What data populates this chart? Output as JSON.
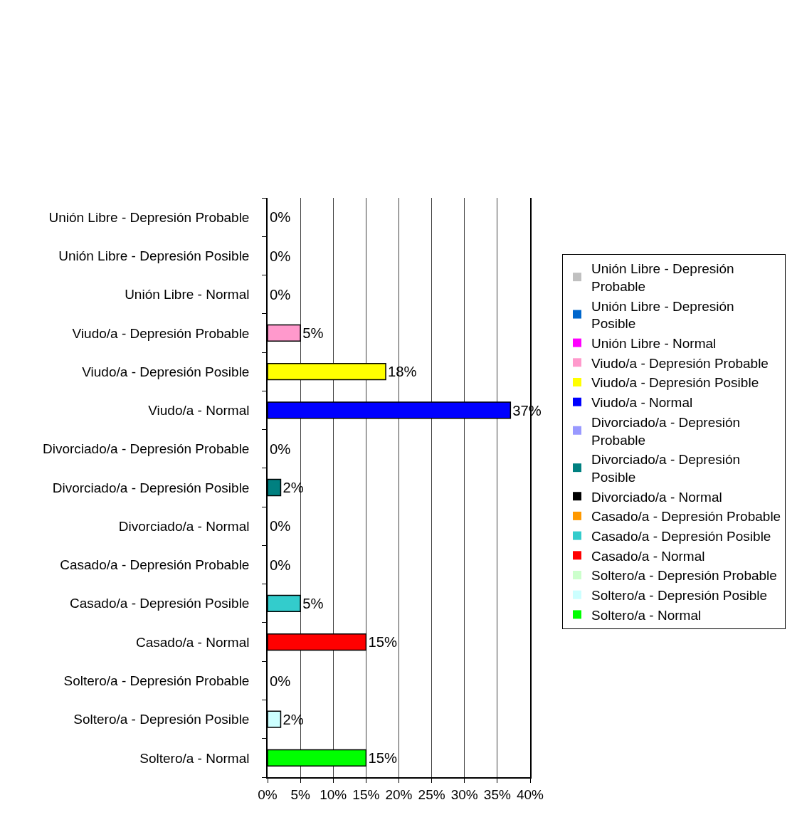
{
  "chart_data": {
    "type": "bar",
    "orientation": "horizontal",
    "stacked": true,
    "categories": [
      "Unión Libre - Depresión Probable",
      "Unión Libre - Depresión Posible",
      "Unión Libre - Normal",
      "Viudo/a - Depresión Probable",
      "Viudo/a - Depresión Posible",
      "Viudo/a - Normal",
      "Divorciado/a - Depresión Probable",
      "Divorciado/a - Depresión Posible",
      "Divorciado/a - Normal",
      "Casado/a - Depresión Probable",
      "Casado/a - Depresión Posible",
      "Casado/a - Normal",
      "Soltero/a - Depresión Probable",
      "Soltero/a - Depresión Posible",
      "Soltero/a - Normal"
    ],
    "series": [
      {
        "name": "Unión Libre - Depresión Probable",
        "color": "#c0c0c0",
        "values": [
          0,
          null,
          null,
          null,
          null,
          null,
          null,
          null,
          null,
          null,
          null,
          null,
          null,
          null,
          null
        ],
        "value_labels": [
          "0%",
          null,
          null,
          null,
          null,
          null,
          null,
          null,
          null,
          null,
          null,
          null,
          null,
          null,
          null
        ]
      },
      {
        "name": "Unión Libre - Depresión Posible",
        "color": "#0066cc",
        "values": [
          null,
          0,
          null,
          null,
          null,
          null,
          null,
          null,
          null,
          null,
          null,
          null,
          null,
          null,
          null
        ],
        "value_labels": [
          null,
          "0%",
          null,
          null,
          null,
          null,
          null,
          null,
          null,
          null,
          null,
          null,
          null,
          null,
          null
        ]
      },
      {
        "name": "Unión Libre - Normal",
        "color": "#ff00ff",
        "values": [
          null,
          null,
          0,
          null,
          null,
          null,
          null,
          null,
          null,
          null,
          null,
          null,
          null,
          null,
          null
        ],
        "value_labels": [
          null,
          null,
          "0%",
          null,
          null,
          null,
          null,
          null,
          null,
          null,
          null,
          null,
          null,
          null,
          null
        ]
      },
      {
        "name": "Viudo/a - Depresión Probable",
        "color": "#ff99cc",
        "values": [
          null,
          null,
          null,
          5,
          null,
          null,
          null,
          null,
          null,
          null,
          null,
          null,
          null,
          null,
          null
        ],
        "value_labels": [
          null,
          null,
          null,
          "5%",
          null,
          null,
          null,
          null,
          null,
          null,
          null,
          null,
          null,
          null,
          null
        ]
      },
      {
        "name": "Viudo/a - Depresión Posible",
        "color": "#ffff00",
        "values": [
          null,
          null,
          null,
          null,
          18,
          null,
          null,
          null,
          null,
          null,
          null,
          null,
          null,
          null,
          null
        ],
        "value_labels": [
          null,
          null,
          null,
          null,
          "18%",
          null,
          null,
          null,
          null,
          null,
          null,
          null,
          null,
          null,
          null
        ]
      },
      {
        "name": "Viudo/a - Normal",
        "color": "#0000ff",
        "values": [
          null,
          null,
          null,
          null,
          null,
          37,
          null,
          null,
          null,
          null,
          null,
          null,
          null,
          null,
          null
        ],
        "value_labels": [
          null,
          null,
          null,
          null,
          null,
          "37%",
          null,
          null,
          null,
          null,
          null,
          null,
          null,
          null,
          null
        ]
      },
      {
        "name": "Divorciado/a - Depresión Probable",
        "color": "#9999ff",
        "values": [
          null,
          null,
          null,
          null,
          null,
          null,
          0,
          null,
          null,
          null,
          null,
          null,
          null,
          null,
          null
        ],
        "value_labels": [
          null,
          null,
          null,
          null,
          null,
          null,
          "0%",
          null,
          null,
          null,
          null,
          null,
          null,
          null,
          null
        ]
      },
      {
        "name": "Divorciado/a - Depresión Posible",
        "color": "#008080",
        "values": [
          null,
          null,
          null,
          null,
          null,
          null,
          null,
          2,
          null,
          null,
          null,
          null,
          null,
          null,
          null
        ],
        "value_labels": [
          null,
          null,
          null,
          null,
          null,
          null,
          null,
          "2%",
          null,
          null,
          null,
          null,
          null,
          null,
          null
        ]
      },
      {
        "name": "Divorciado/a - Normal",
        "color": "#000000",
        "values": [
          null,
          null,
          null,
          null,
          null,
          null,
          null,
          null,
          0,
          null,
          null,
          null,
          null,
          null,
          null
        ],
        "value_labels": [
          null,
          null,
          null,
          null,
          null,
          null,
          null,
          null,
          "0%",
          null,
          null,
          null,
          null,
          null,
          null
        ]
      },
      {
        "name": "Casado/a - Depresión Probable",
        "color": "#ff9900",
        "values": [
          null,
          null,
          null,
          null,
          null,
          null,
          null,
          null,
          null,
          0,
          null,
          null,
          null,
          null,
          null
        ],
        "value_labels": [
          null,
          null,
          null,
          null,
          null,
          null,
          null,
          null,
          null,
          "0%",
          null,
          null,
          null,
          null,
          null
        ]
      },
      {
        "name": "Casado/a - Depresión Posible",
        "color": "#33cccc",
        "values": [
          null,
          null,
          null,
          null,
          null,
          null,
          null,
          null,
          null,
          null,
          5,
          null,
          null,
          null,
          null
        ],
        "value_labels": [
          null,
          null,
          null,
          null,
          null,
          null,
          null,
          null,
          null,
          null,
          "5%",
          null,
          null,
          null,
          null
        ]
      },
      {
        "name": "Casado/a - Normal",
        "color": "#ff0000",
        "values": [
          null,
          null,
          null,
          null,
          null,
          null,
          null,
          null,
          null,
          null,
          null,
          15,
          null,
          null,
          null
        ],
        "value_labels": [
          null,
          null,
          null,
          null,
          null,
          null,
          null,
          null,
          null,
          null,
          null,
          "15%",
          null,
          null,
          null
        ]
      },
      {
        "name": "Soltero/a - Depresión Probable",
        "color": "#ccffcc",
        "values": [
          null,
          null,
          null,
          null,
          null,
          null,
          null,
          null,
          null,
          null,
          null,
          null,
          0,
          null,
          null
        ],
        "value_labels": [
          null,
          null,
          null,
          null,
          null,
          null,
          null,
          null,
          null,
          null,
          null,
          null,
          "0%",
          null,
          null
        ]
      },
      {
        "name": "Soltero/a - Depresión Posible",
        "color": "#ccffff",
        "values": [
          null,
          null,
          null,
          null,
          null,
          null,
          null,
          null,
          null,
          null,
          null,
          null,
          null,
          2,
          null
        ],
        "value_labels": [
          null,
          null,
          null,
          null,
          null,
          null,
          null,
          null,
          null,
          null,
          null,
          null,
          null,
          "2%",
          null
        ]
      },
      {
        "name": "Soltero/a - Normal",
        "color": "#00ff00",
        "values": [
          null,
          null,
          null,
          null,
          null,
          null,
          null,
          null,
          null,
          null,
          null,
          null,
          null,
          null,
          15
        ],
        "value_labels": [
          null,
          null,
          null,
          null,
          null,
          null,
          null,
          null,
          null,
          null,
          null,
          null,
          null,
          null,
          "15%"
        ]
      }
    ],
    "xlim": [
      0,
      40
    ],
    "xticks": [
      {
        "value": 0,
        "label": "0%"
      },
      {
        "value": 5,
        "label": "5%"
      },
      {
        "value": 10,
        "label": "10%"
      },
      {
        "value": 15,
        "label": "15%"
      },
      {
        "value": 20,
        "label": "20%"
      },
      {
        "value": 25,
        "label": "25%"
      },
      {
        "value": 30,
        "label": "30%"
      },
      {
        "value": 35,
        "label": "35%"
      },
      {
        "value": 40,
        "label": "40%"
      }
    ],
    "grid": "x",
    "legend": "right"
  }
}
